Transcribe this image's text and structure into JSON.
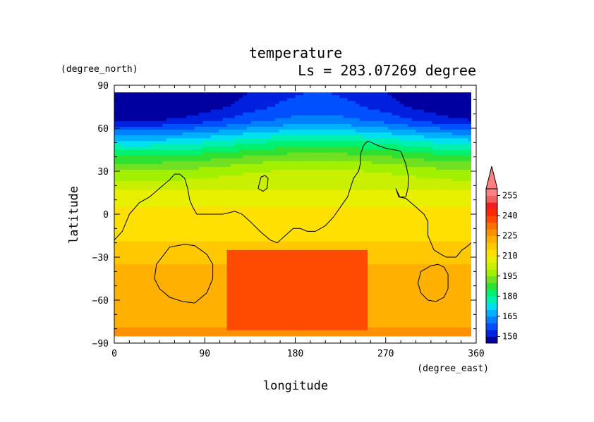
{
  "chart_data": {
    "type": "heatmap",
    "title": "temperature",
    "subtitle": "Ls = 283.07269 degree",
    "xlabel": "longitude",
    "ylabel": "latitude",
    "x_units": "(degree_east)",
    "y_units": "(degree_north)",
    "xlim": [
      0,
      360
    ],
    "ylim": [
      -90,
      90
    ],
    "x_ticks": [
      0,
      90,
      180,
      270,
      360
    ],
    "y_ticks": [
      90,
      60,
      30,
      0,
      -30,
      -60,
      -90
    ],
    "grid": false,
    "colorbar": {
      "levels": [
        145,
        150,
        155,
        160,
        165,
        170,
        175,
        180,
        185,
        190,
        195,
        200,
        205,
        210,
        215,
        220,
        225,
        230,
        235,
        240,
        245,
        250,
        255,
        260
      ],
      "labels": [
        150,
        165,
        180,
        195,
        210,
        225,
        240,
        255
      ],
      "colors": [
        "#0000a0",
        "#0020e0",
        "#0050ff",
        "#0080ff",
        "#00b0ff",
        "#00e0f0",
        "#00f0b0",
        "#00f070",
        "#30e030",
        "#70e020",
        "#a0f000",
        "#c8f000",
        "#e8f000",
        "#ffe000",
        "#ffc800",
        "#ffb000",
        "#ff9000",
        "#ff7000",
        "#ff4a00",
        "#ff2a00",
        "#f02020",
        "#f06060",
        "#ff8080"
      ],
      "extend": "max"
    },
    "temperature_latitude_profile": {
      "latitude": [
        85,
        75,
        65,
        60,
        55,
        50,
        45,
        40,
        35,
        30,
        25,
        20,
        15,
        10,
        5,
        0,
        -5,
        -10,
        -15,
        -20,
        -25,
        -30,
        -40,
        -50,
        -60,
        -70,
        -80,
        -85
      ],
      "temperature": [
        147,
        150,
        156,
        163,
        170,
        177,
        183,
        189,
        194,
        198,
        201,
        204,
        206,
        208,
        210,
        211,
        212,
        213,
        214,
        215,
        217,
        219,
        221,
        222,
        223,
        224,
        225,
        225
      ]
    },
    "warm_region": {
      "lon": [
        110,
        250
      ],
      "lat": [
        -80,
        -25
      ],
      "temperature": 237
    },
    "coastlines": [
      {
        "lon": [
          0,
          8,
          15,
          25,
          35,
          45,
          55,
          60,
          65,
          70,
          73,
          75,
          78,
          82,
          88,
          95,
          102,
          108,
          114,
          120,
          127,
          135,
          145,
          155,
          162,
          170,
          178,
          185,
          192,
          200,
          210,
          218,
          225,
          232,
          238,
          243,
          245,
          245,
          248,
          252,
          256,
          262,
          270,
          278,
          285,
          290,
          293,
          292,
          290,
          284,
          280,
          283,
          290,
          300,
          308,
          312,
          312,
          318,
          325,
          330,
          340,
          346,
          350,
          355,
          360
        ],
        "lat": [
          -18,
          -12,
          0,
          8,
          12,
          18,
          24,
          28,
          28,
          25,
          18,
          10,
          5,
          0,
          0,
          0,
          0,
          0,
          1,
          2,
          0,
          -5,
          -12,
          -18,
          -20,
          -15,
          -10,
          -10,
          -12,
          -12,
          -8,
          -2,
          5,
          12,
          25,
          30,
          36,
          42,
          48,
          51,
          50,
          48,
          46,
          45,
          44,
          35,
          25,
          18,
          12,
          12,
          18,
          12,
          11,
          5,
          0,
          -5,
          -15,
          -25,
          -28,
          -30,
          -30,
          -25,
          -23,
          -20,
          -18
        ]
      },
      {
        "lon": [
          143,
          148,
          152,
          153,
          150,
          146,
          143
        ],
        "lat": [
          18,
          16,
          18,
          25,
          27,
          26,
          18
        ]
      },
      {
        "lon": [
          70,
          55,
          42,
          40,
          45,
          55,
          68,
          80,
          92,
          98,
          98,
          92,
          80,
          70
        ],
        "lat": [
          -21,
          -23,
          -35,
          -45,
          -52,
          -58,
          -61,
          -62,
          -55,
          -45,
          -35,
          -28,
          -22,
          -21
        ]
      },
      {
        "lon": [
          315,
          305,
          302,
          305,
          312,
          320,
          328,
          332,
          332,
          328,
          322,
          315
        ],
        "lat": [
          -36,
          -40,
          -48,
          -55,
          -60,
          -61,
          -58,
          -52,
          -42,
          -37,
          -35,
          -36
        ]
      }
    ]
  }
}
